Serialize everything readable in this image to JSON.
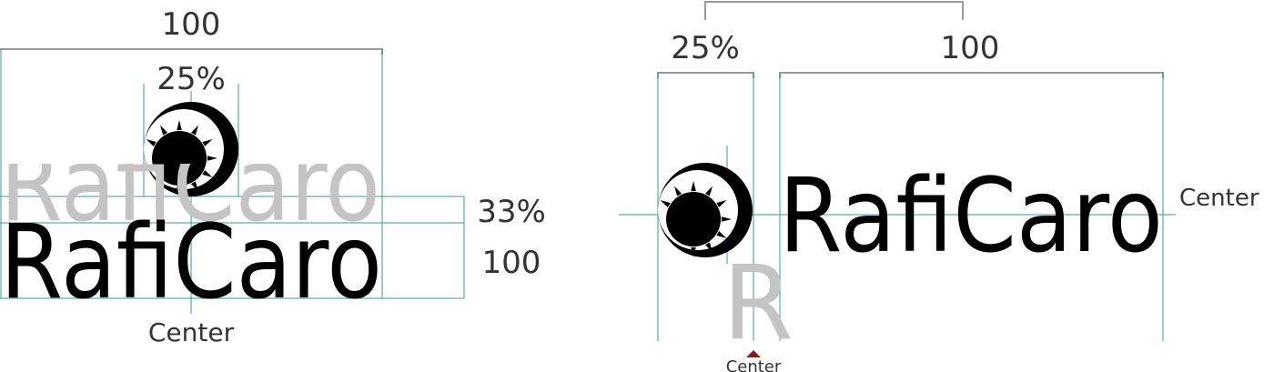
{
  "colors": {
    "guide": "#3a9a96",
    "dimension_line": "#999999",
    "text": "#333333",
    "logo": "#000000",
    "ghost": "#c4c4c4",
    "marker": "#8b1a1a"
  },
  "left_panel": {
    "width_label": "100",
    "mark_width_label": "25%",
    "gap_label": "33%",
    "text_height_label": "100",
    "center_label": "Center",
    "wordmark": "RafiCaro",
    "ghost_wordmark": "RafiCaro"
  },
  "right_panel": {
    "mark_width_label": "25%",
    "text_width_label": "100",
    "center_label": "Center",
    "bottom_center_label": "Center",
    "wordmark": "RafiCaro",
    "ghost_letter": "R"
  },
  "icons": {
    "logo_mark": "crescent-sun-icon",
    "marker": "triangle-up-icon"
  }
}
